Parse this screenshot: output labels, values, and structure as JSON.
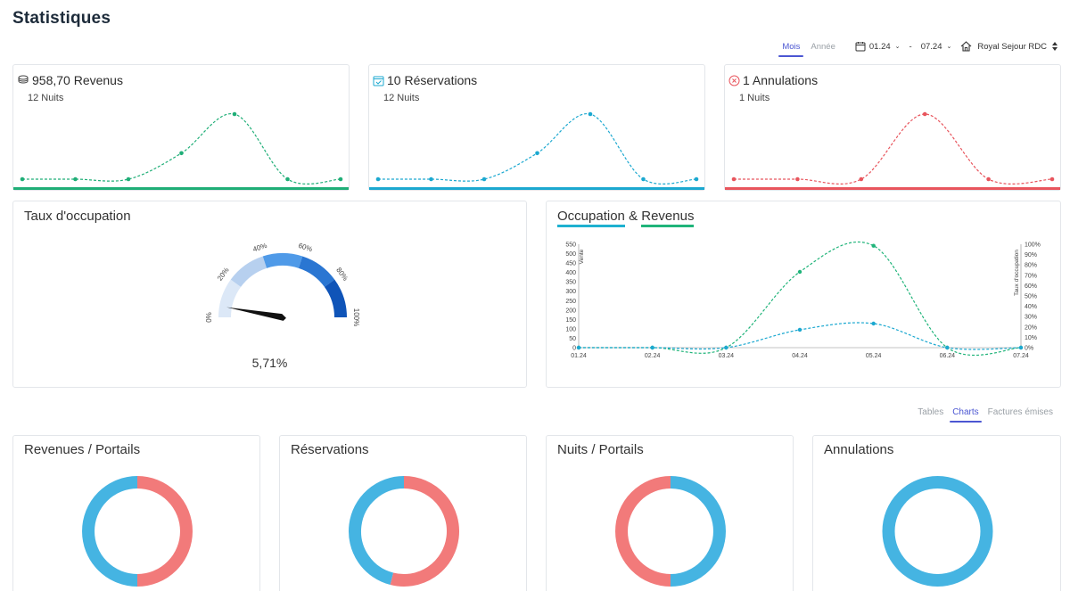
{
  "page": {
    "title": "Statistiques"
  },
  "toolbar": {
    "period_tabs": [
      {
        "label": "Mois",
        "active": true
      },
      {
        "label": "Année",
        "active": false
      }
    ],
    "date_from": "01.24",
    "date_to": "07.24",
    "date_separator": "-",
    "property": "Royal Sejour RDC",
    "icons": {
      "calendar": "calendar-icon",
      "home": "home-icon",
      "sort": "sort-icon"
    }
  },
  "kpis": [
    {
      "key": "revenus",
      "title": "958,70 Revenus",
      "subtitle": "12 Nuits",
      "icon": "coins-icon",
      "color": "#1fae77",
      "values": [
        0,
        0,
        0,
        40,
        100,
        0,
        0
      ]
    },
    {
      "key": "reservations",
      "title": "10 Réservations",
      "subtitle": "12 Nuits",
      "icon": "calendar-check-icon",
      "color": "#1ba8d0",
      "values": [
        0,
        0,
        0,
        40,
        100,
        0,
        0
      ]
    },
    {
      "key": "annulations",
      "title": "1 Annulations",
      "subtitle": "1 Nuits",
      "icon": "cancel-circle-icon",
      "color": "#e8555d",
      "values": [
        0,
        0,
        0,
        100,
        0,
        0
      ]
    }
  ],
  "occupancy": {
    "title": "Taux d'occupation",
    "value_label": "5,71%",
    "value": 5.71,
    "ticks": [
      "0%",
      "20%",
      "40%",
      "60%",
      "80%",
      "100%"
    ],
    "segment_colors": [
      "#dce8f7",
      "#b7d0ef",
      "#4f9ae8",
      "#2a76d2",
      "#0f54b8"
    ]
  },
  "occ_rev": {
    "title_left": "Occupation",
    "title_amp": "&",
    "title_right": "Revenus"
  },
  "chart_data": {
    "type": "line",
    "x": [
      "01.24",
      "02.24",
      "03.24",
      "04.24",
      "05.24",
      "06.24",
      "07.24"
    ],
    "y_left": {
      "label": "Vente",
      "ticks": [
        "550",
        "500",
        "450",
        "400",
        "350",
        "300",
        "250",
        "200",
        "150",
        "100",
        "50",
        "0"
      ],
      "range": [
        0,
        550
      ]
    },
    "y_right": {
      "label": "Taux d'occupation",
      "ticks": [
        "100%",
        "90%",
        "80%",
        "70%",
        "60%",
        "50%",
        "40%",
        "30%",
        "20%",
        "10%",
        "0%"
      ],
      "range": [
        0,
        100
      ]
    },
    "series": [
      {
        "color": "#20b47a",
        "values": [
          0,
          0,
          0,
          403,
          542,
          0,
          0
        ]
      },
      {
        "color": "#1ba8d0",
        "values": [
          0,
          0,
          0,
          95,
          128,
          0,
          0
        ]
      }
    ]
  },
  "view_tabs": [
    {
      "label": "Tables",
      "active": false
    },
    {
      "label": "Charts",
      "active": true
    },
    {
      "label": "Factures émises",
      "active": false
    }
  ],
  "donuts": [
    {
      "title": "Revenues / Portails",
      "slices": [
        {
          "value": 50,
          "color": "#f27a7a"
        },
        {
          "value": 50,
          "color": "#45b4e2"
        }
      ]
    },
    {
      "title": "Réservations",
      "slices": [
        {
          "value": 54,
          "color": "#f27a7a"
        },
        {
          "value": 46,
          "color": "#45b4e2"
        }
      ]
    },
    {
      "title": "Nuits / Portails",
      "slices": [
        {
          "value": 50,
          "color": "#45b4e2"
        },
        {
          "value": 50,
          "color": "#f27a7a"
        }
      ]
    },
    {
      "title": "Annulations",
      "slices": [
        {
          "value": 100,
          "color": "#45b4e2"
        }
      ]
    }
  ]
}
